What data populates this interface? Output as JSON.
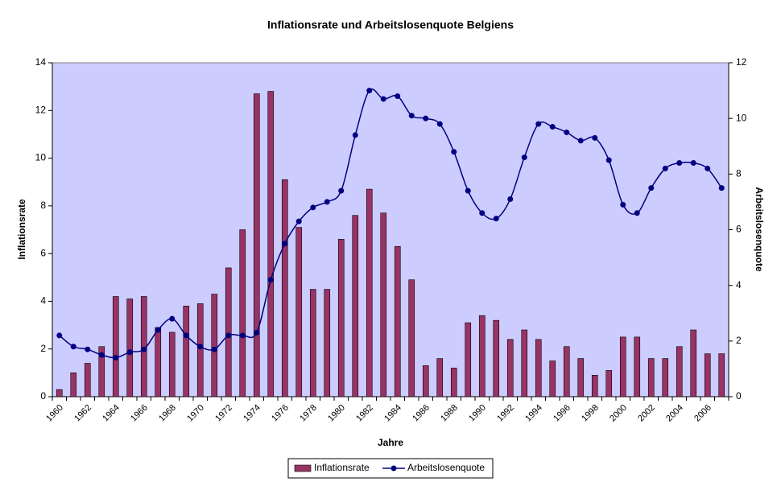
{
  "chart_data": {
    "type": "bar_line",
    "title": "Inflationsrate und Arbeitslosenquote Belgiens",
    "x_label": "Jahre",
    "y_label": "Inflationsrate",
    "y2_label": "Arbeitslosenquote",
    "categories": [
      "1960",
      null,
      "1962",
      null,
      "1964",
      null,
      "1966",
      null,
      "1968",
      null,
      "1970",
      null,
      "1972",
      null,
      "1974",
      null,
      "1976",
      null,
      "1978",
      null,
      "1980",
      null,
      "1982",
      null,
      "1984",
      null,
      "1986",
      null,
      "1988",
      null,
      "1990",
      null,
      "1992",
      null,
      "1994",
      null,
      "1996",
      null,
      "1998",
      null,
      "2000",
      null,
      "2002",
      null,
      "2004",
      null,
      "2006",
      null
    ],
    "series": [
      {
        "name": "Inflationsrate",
        "type": "bar",
        "color": "#993366",
        "values": [
          0.3,
          1.0,
          1.4,
          2.1,
          4.2,
          4.1,
          4.2,
          2.9,
          2.7,
          3.8,
          3.9,
          4.3,
          5.4,
          7.0,
          12.7,
          12.8,
          9.1,
          7.1,
          4.5,
          4.5,
          6.6,
          7.6,
          8.7,
          7.7,
          6.3,
          4.9,
          1.3,
          1.6,
          1.2,
          3.1,
          3.4,
          3.2,
          2.4,
          2.8,
          2.4,
          1.5,
          2.1,
          1.6,
          0.9,
          1.1,
          2.5,
          2.5,
          1.6,
          1.6,
          2.1,
          2.8,
          1.8,
          1.8
        ]
      },
      {
        "name": "Arbeitslosenquote",
        "type": "line",
        "axis": "y2",
        "color": "#000080",
        "values": [
          2.2,
          1.8,
          1.7,
          1.5,
          1.4,
          1.6,
          1.7,
          2.4,
          2.8,
          2.2,
          1.8,
          1.7,
          2.2,
          2.2,
          2.3,
          4.2,
          5.5,
          6.3,
          6.8,
          7.0,
          7.4,
          9.4,
          11.0,
          10.7,
          10.8,
          10.1,
          10.0,
          9.8,
          8.8,
          7.4,
          6.6,
          6.4,
          7.1,
          8.6,
          9.8,
          9.7,
          9.5,
          9.2,
          9.3,
          8.5,
          6.9,
          6.6,
          7.5,
          8.2,
          8.4,
          8.4,
          8.2,
          7.5
        ]
      }
    ],
    "ylim": [
      0,
      14
    ],
    "yticks": [
      0,
      2,
      4,
      6,
      8,
      10,
      12,
      14
    ],
    "y2lim": [
      0,
      12
    ],
    "y2ticks": [
      0,
      2,
      4,
      6,
      8,
      10,
      12
    ],
    "plot_background": "#ccccff"
  }
}
